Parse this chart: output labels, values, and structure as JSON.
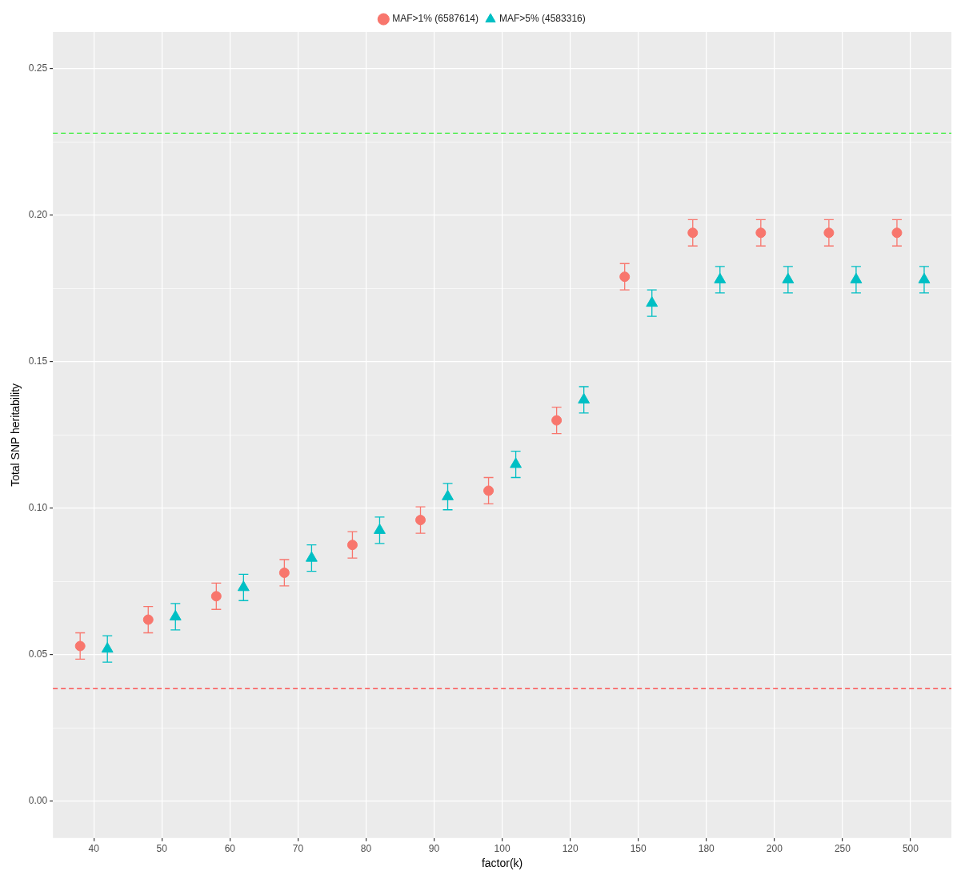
{
  "chart_data": {
    "type": "scatter",
    "xlabel": "factor(k)",
    "ylabel": "Total SNP heritability",
    "categories": [
      "40",
      "50",
      "60",
      "70",
      "80",
      "90",
      "100",
      "120",
      "150",
      "180",
      "200",
      "250",
      "500"
    ],
    "ylim": [
      -0.0125,
      0.2625
    ],
    "yticks": [
      {
        "value": 0,
        "label": "0.00"
      },
      {
        "value": 0.025,
        "label": null
      },
      {
        "value": 0.05,
        "label": "0.05"
      },
      {
        "value": 0.075,
        "label": null
      },
      {
        "value": 0.1,
        "label": "0.10"
      },
      {
        "value": 0.125,
        "label": null
      },
      {
        "value": 0.15,
        "label": "0.15"
      },
      {
        "value": 0.175,
        "label": null
      },
      {
        "value": 0.2,
        "label": "0.20"
      },
      {
        "value": 0.225,
        "label": null
      },
      {
        "value": 0.25,
        "label": "0.25"
      }
    ],
    "grid": true,
    "legend": "top",
    "series": [
      {
        "name": "MAF>1% (6587614)",
        "color": "#f8766d",
        "marker": "circle",
        "values": [
          0.053,
          0.062,
          0.07,
          0.078,
          0.0875,
          0.096,
          0.106,
          0.13,
          0.179,
          0.194,
          0.194,
          0.194,
          0.194
        ],
        "errors": [
          0.0045,
          0.0045,
          0.0045,
          0.0045,
          0.0045,
          0.0045,
          0.0045,
          0.0045,
          0.0045,
          0.0045,
          0.0045,
          0.0045,
          0.0045
        ]
      },
      {
        "name": "MAF>5% (4583316)",
        "color": "#00bfc4",
        "marker": "triangle",
        "values": [
          0.052,
          0.063,
          0.073,
          0.083,
          0.0925,
          0.104,
          0.115,
          0.137,
          0.17,
          0.178,
          0.178,
          0.178,
          0.178
        ],
        "errors": [
          0.0045,
          0.0045,
          0.0045,
          0.0045,
          0.0045,
          0.0045,
          0.0045,
          0.0045,
          0.0045,
          0.0045,
          0.0045,
          0.0045,
          0.0045
        ]
      }
    ],
    "ref_lines": [
      {
        "axis": "y",
        "value": 0.228,
        "color": "#33ee33",
        "line_style": "dashed"
      },
      {
        "axis": "y",
        "value": 0.0385,
        "color": "#ff3333",
        "line_style": "dashed"
      }
    ]
  }
}
